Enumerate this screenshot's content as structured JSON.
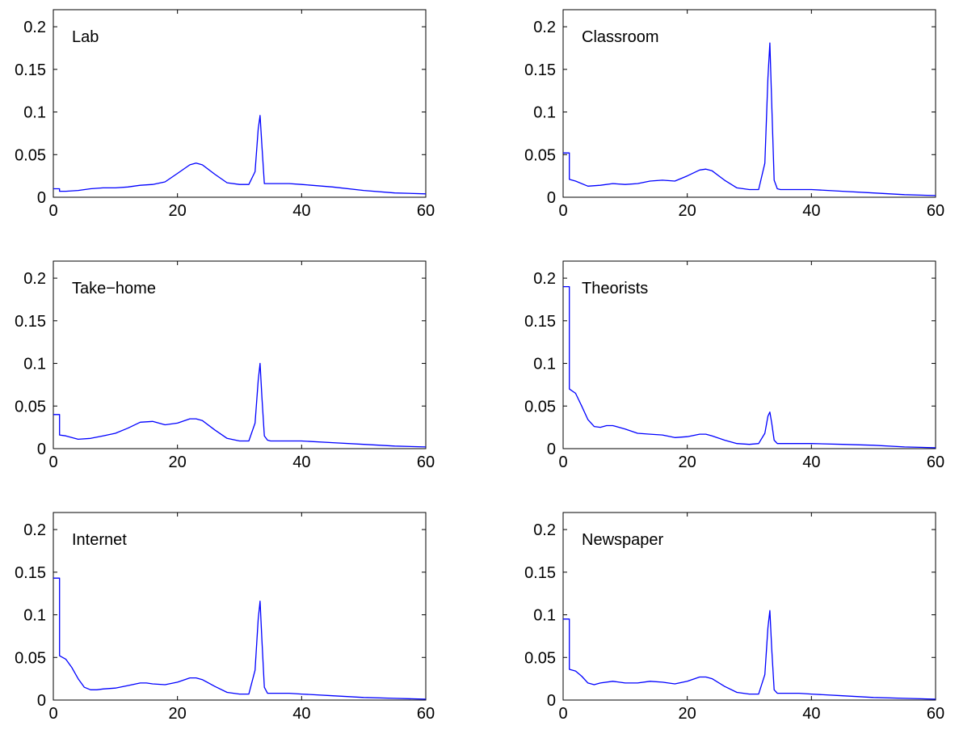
{
  "chart_data": [
    {
      "type": "line",
      "title": "Lab",
      "xlim": [
        0,
        60
      ],
      "ylim": [
        0,
        0.22
      ],
      "xticks": [
        0,
        20,
        40,
        60
      ],
      "xtick_labels": [
        "0",
        "20",
        "40",
        "60"
      ],
      "yticks": [
        0,
        0.05,
        0.1,
        0.15,
        0.2
      ],
      "ytick_labels": [
        "0",
        "0.05",
        "0.1",
        "0.15",
        "0.2"
      ],
      "grid": false,
      "x": [
        0,
        1,
        1,
        2,
        4,
        6,
        8,
        10,
        12,
        14,
        16,
        18,
        20,
        22,
        23,
        24,
        26,
        28,
        30,
        31.5,
        32.5,
        33,
        33.3,
        33.6,
        34,
        34.5,
        35,
        38,
        40,
        45,
        50,
        55,
        60
      ],
      "y": [
        0.01,
        0.01,
        0.007,
        0.007,
        0.008,
        0.01,
        0.011,
        0.011,
        0.012,
        0.014,
        0.015,
        0.018,
        0.028,
        0.038,
        0.04,
        0.038,
        0.027,
        0.017,
        0.015,
        0.015,
        0.03,
        0.08,
        0.096,
        0.06,
        0.016,
        0.016,
        0.016,
        0.016,
        0.015,
        0.012,
        0.008,
        0.005,
        0.004
      ]
    },
    {
      "type": "line",
      "title": "Classroom",
      "xlim": [
        0,
        60
      ],
      "ylim": [
        0,
        0.22
      ],
      "xticks": [
        0,
        20,
        40,
        60
      ],
      "xtick_labels": [
        "0",
        "20",
        "40",
        "60"
      ],
      "yticks": [
        0,
        0.05,
        0.1,
        0.15,
        0.2
      ],
      "ytick_labels": [
        "0",
        "0.05",
        "0.1",
        "0.15",
        "0.2"
      ],
      "grid": false,
      "x": [
        0,
        1,
        1,
        2,
        4,
        6,
        8,
        10,
        12,
        14,
        16,
        18,
        20,
        22,
        23,
        24,
        26,
        28,
        30,
        31.5,
        32.5,
        33,
        33.3,
        33.6,
        34,
        34.5,
        35,
        38,
        40,
        45,
        50,
        55,
        60
      ],
      "y": [
        0.052,
        0.052,
        0.021,
        0.019,
        0.013,
        0.014,
        0.016,
        0.015,
        0.016,
        0.019,
        0.02,
        0.019,
        0.025,
        0.032,
        0.033,
        0.031,
        0.02,
        0.011,
        0.009,
        0.009,
        0.04,
        0.14,
        0.181,
        0.11,
        0.02,
        0.01,
        0.009,
        0.009,
        0.009,
        0.007,
        0.005,
        0.003,
        0.002
      ]
    },
    {
      "type": "line",
      "title": "Take−home",
      "xlim": [
        0,
        60
      ],
      "ylim": [
        0,
        0.22
      ],
      "xticks": [
        0,
        20,
        40,
        60
      ],
      "xtick_labels": [
        "0",
        "20",
        "40",
        "60"
      ],
      "yticks": [
        0,
        0.05,
        0.1,
        0.15,
        0.2
      ],
      "ytick_labels": [
        "0",
        "0.05",
        "0.1",
        "0.15",
        "0.2"
      ],
      "grid": false,
      "x": [
        0,
        1,
        1,
        2,
        4,
        6,
        8,
        10,
        12,
        14,
        16,
        18,
        20,
        22,
        23,
        24,
        26,
        28,
        30,
        31.5,
        32.5,
        33,
        33.3,
        33.6,
        34,
        34.5,
        35,
        38,
        40,
        45,
        50,
        55,
        60
      ],
      "y": [
        0.04,
        0.04,
        0.016,
        0.015,
        0.011,
        0.012,
        0.015,
        0.018,
        0.024,
        0.031,
        0.032,
        0.028,
        0.03,
        0.035,
        0.035,
        0.033,
        0.022,
        0.012,
        0.009,
        0.009,
        0.03,
        0.08,
        0.1,
        0.06,
        0.015,
        0.01,
        0.009,
        0.009,
        0.009,
        0.007,
        0.005,
        0.003,
        0.002
      ]
    },
    {
      "type": "line",
      "title": "Theorists",
      "xlim": [
        0,
        60
      ],
      "ylim": [
        0,
        0.22
      ],
      "xticks": [
        0,
        20,
        40,
        60
      ],
      "xtick_labels": [
        "0",
        "20",
        "40",
        "60"
      ],
      "yticks": [
        0,
        0.05,
        0.1,
        0.15,
        0.2
      ],
      "ytick_labels": [
        "0",
        "0.05",
        "0.1",
        "0.15",
        "0.2"
      ],
      "grid": false,
      "x": [
        0,
        1,
        1,
        2,
        3,
        4,
        5,
        6,
        7,
        8,
        10,
        12,
        14,
        16,
        18,
        20,
        22,
        23,
        24,
        26,
        28,
        30,
        31.5,
        32.5,
        33,
        33.3,
        33.6,
        34,
        34.5,
        35,
        38,
        40,
        45,
        50,
        55,
        60
      ],
      "y": [
        0.19,
        0.19,
        0.07,
        0.065,
        0.05,
        0.034,
        0.026,
        0.025,
        0.027,
        0.027,
        0.023,
        0.018,
        0.017,
        0.016,
        0.013,
        0.014,
        0.017,
        0.017,
        0.015,
        0.01,
        0.006,
        0.005,
        0.006,
        0.018,
        0.038,
        0.043,
        0.03,
        0.01,
        0.006,
        0.006,
        0.006,
        0.006,
        0.005,
        0.004,
        0.002,
        0.001
      ]
    },
    {
      "type": "line",
      "title": "Internet",
      "xlim": [
        0,
        60
      ],
      "ylim": [
        0,
        0.22
      ],
      "xticks": [
        0,
        20,
        40,
        60
      ],
      "xtick_labels": [
        "0",
        "20",
        "40",
        "60"
      ],
      "yticks": [
        0,
        0.05,
        0.1,
        0.15,
        0.2
      ],
      "ytick_labels": [
        "0",
        "0.05",
        "0.1",
        "0.15",
        "0.2"
      ],
      "grid": false,
      "x": [
        0,
        1,
        1,
        2,
        3,
        4,
        5,
        6,
        7,
        8,
        10,
        12,
        14,
        15,
        16,
        18,
        20,
        22,
        23,
        24,
        26,
        28,
        30,
        31.5,
        32.5,
        33,
        33.3,
        33.6,
        34,
        34.5,
        35,
        38,
        40,
        45,
        50,
        55,
        60
      ],
      "y": [
        0.143,
        0.143,
        0.052,
        0.048,
        0.038,
        0.025,
        0.015,
        0.012,
        0.012,
        0.013,
        0.014,
        0.017,
        0.02,
        0.02,
        0.019,
        0.018,
        0.021,
        0.026,
        0.026,
        0.024,
        0.016,
        0.009,
        0.007,
        0.007,
        0.035,
        0.095,
        0.116,
        0.07,
        0.015,
        0.008,
        0.008,
        0.008,
        0.007,
        0.005,
        0.003,
        0.002,
        0.001
      ]
    },
    {
      "type": "line",
      "title": "Newspaper",
      "xlim": [
        0,
        60
      ],
      "ylim": [
        0,
        0.22
      ],
      "xticks": [
        0,
        20,
        40,
        60
      ],
      "xtick_labels": [
        "0",
        "20",
        "40",
        "60"
      ],
      "yticks": [
        0,
        0.05,
        0.1,
        0.15,
        0.2
      ],
      "ytick_labels": [
        "0",
        "0.05",
        "0.1",
        "0.15",
        "0.2"
      ],
      "grid": false,
      "x": [
        0,
        1,
        1,
        2,
        3,
        4,
        5,
        6,
        8,
        10,
        12,
        14,
        16,
        18,
        20,
        22,
        23,
        24,
        26,
        28,
        30,
        31.5,
        32.5,
        33,
        33.3,
        33.6,
        34,
        34.5,
        35,
        38,
        40,
        45,
        50,
        55,
        60
      ],
      "y": [
        0.095,
        0.095,
        0.036,
        0.034,
        0.028,
        0.02,
        0.018,
        0.02,
        0.022,
        0.02,
        0.02,
        0.022,
        0.021,
        0.019,
        0.022,
        0.027,
        0.027,
        0.025,
        0.016,
        0.009,
        0.007,
        0.007,
        0.03,
        0.085,
        0.105,
        0.06,
        0.012,
        0.008,
        0.008,
        0.008,
        0.007,
        0.005,
        0.003,
        0.002,
        0.001
      ]
    }
  ],
  "colors": {
    "line": "#0000ff",
    "axes": "#000000",
    "background": "#ffffff"
  }
}
